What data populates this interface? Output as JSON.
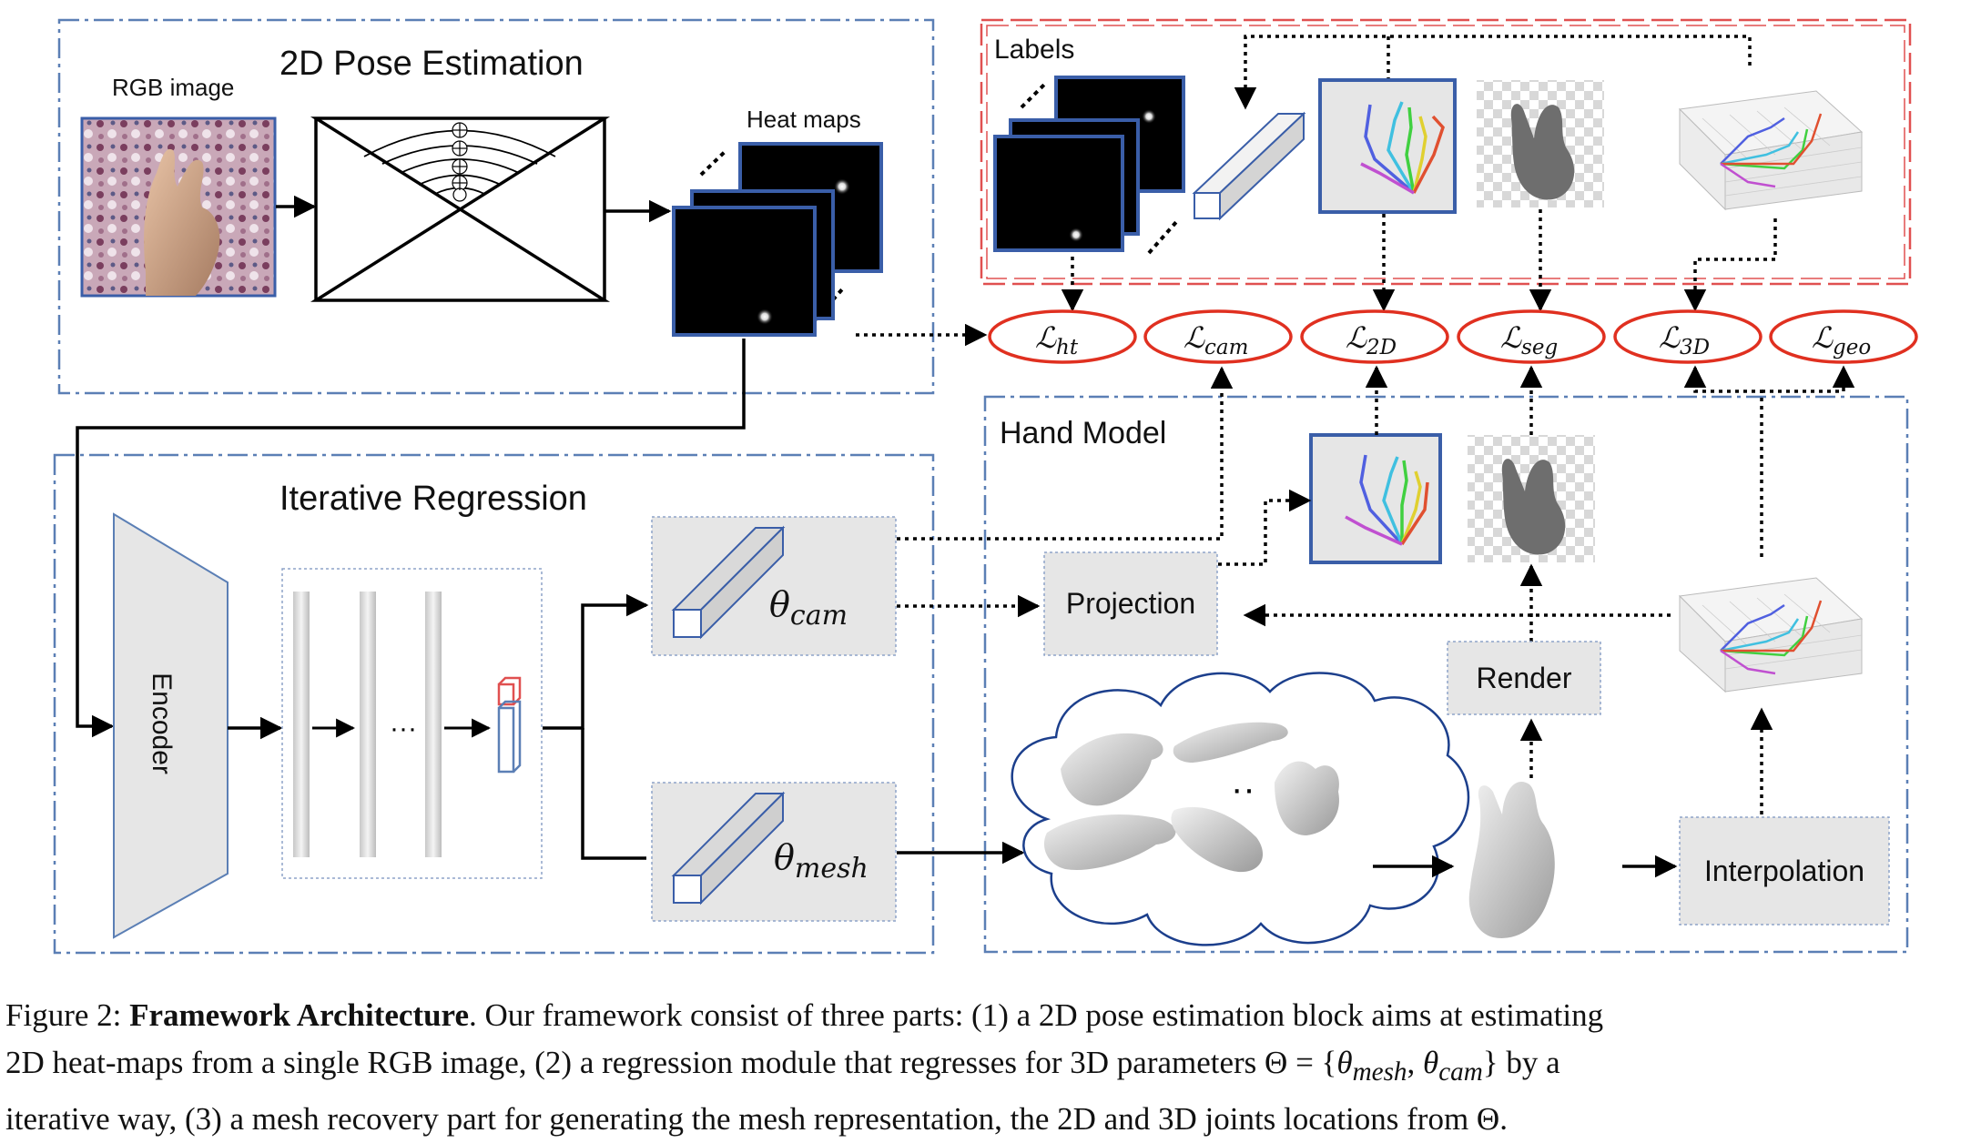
{
  "sections": {
    "pose": "2D Pose Estimation",
    "regression": "Iterative Regression",
    "labels": "Labels",
    "hand_model": "Hand Model"
  },
  "pose": {
    "rgb_label": "RGB image",
    "heatmaps_label": "Heat maps"
  },
  "regression": {
    "encoder": "Encoder",
    "dots": "···",
    "theta": "θ",
    "cam_sub": "cam",
    "mesh_sub": "mesh"
  },
  "hand_model": {
    "projection": "Projection",
    "render": "Render",
    "interpolation": "Interpolation",
    "cloud_dots": "··"
  },
  "losses": [
    {
      "main": "ℒ",
      "sub": "ht"
    },
    {
      "main": "ℒ",
      "sub": "cam"
    },
    {
      "main": "ℒ",
      "sub": "2D"
    },
    {
      "main": "ℒ",
      "sub": "seg"
    },
    {
      "main": "ℒ",
      "sub": "3D"
    },
    {
      "main": "ℒ",
      "sub": "geo"
    }
  ],
  "caption": {
    "line1_prefix": "Figure 2: ",
    "line1_bold": "Framework Architecture",
    "line1_rest": ". Our framework consist of three parts: (1) a 2D pose estimation block aims at estimating",
    "line2_a": "2D heat-maps from a single RGB image, (2) a regression module that regresses for 3D parameters Θ = {",
    "line2_theta1": "θ",
    "line2_sub1": "mesh",
    "line2_comma": ", ",
    "line2_theta2": "θ",
    "line2_sub2": "cam",
    "line2_b": "} by a",
    "line3": "iterative way, (3) a mesh recovery part for generating the mesh representation, the 2D and 3D joints locations from Θ."
  },
  "colors": {
    "blue_dash": "#5b7fb5",
    "red_dash": "#e05050",
    "loss_red": "#e03020",
    "box_gray": "#e6e6e6",
    "heatmap_frame": "#3a5ea8"
  }
}
